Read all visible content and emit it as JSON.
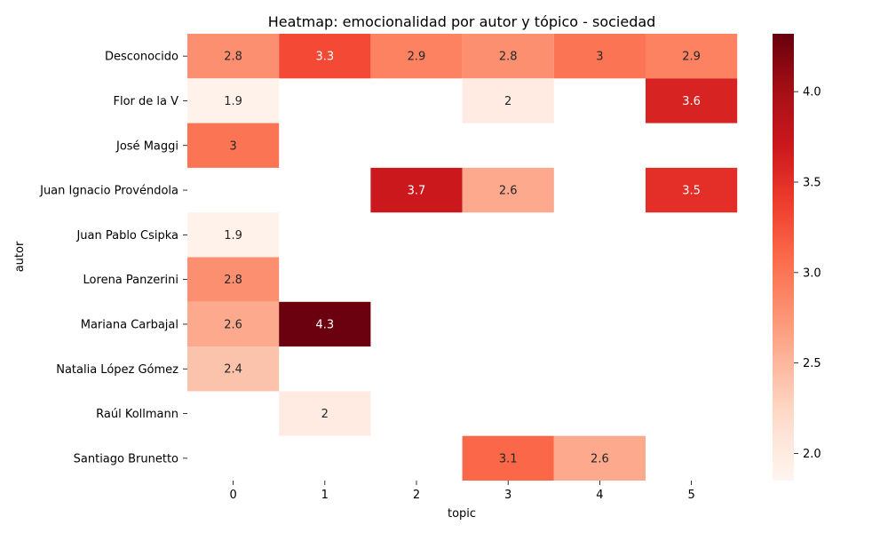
{
  "chart_data": {
    "type": "heatmap",
    "title": "Heatmap: emocionalidad por autor y tópico - sociedad",
    "xlabel": "topic",
    "ylabel": "autor",
    "x_categories": [
      "0",
      "1",
      "2",
      "3",
      "4",
      "5"
    ],
    "y_categories": [
      "Desconocido",
      "Flor de la V",
      "José Maggi",
      "Juan Ignacio Provéndola",
      "Juan Pablo Csipka",
      "Lorena Panzerini",
      "Mariana Carbajal",
      "Natalia López Gómez",
      "Raúl Kollmann",
      "Santiago Brunetto"
    ],
    "values": [
      [
        2.8,
        3.3,
        2.9,
        2.8,
        3,
        2.9
      ],
      [
        1.9,
        null,
        null,
        2,
        null,
        3.6
      ],
      [
        3,
        null,
        null,
        null,
        null,
        null
      ],
      [
        null,
        null,
        3.7,
        2.6,
        null,
        3.5
      ],
      [
        1.9,
        null,
        null,
        null,
        null,
        null
      ],
      [
        2.8,
        null,
        null,
        null,
        null,
        null
      ],
      [
        2.6,
        4.3,
        null,
        null,
        null,
        null
      ],
      [
        2.4,
        null,
        null,
        null,
        null,
        null
      ],
      [
        null,
        2,
        null,
        null,
        null,
        null
      ],
      [
        null,
        null,
        null,
        3.1,
        2.6,
        null
      ]
    ],
    "colorscale": "Reds",
    "colorbar": {
      "range": [
        1.85,
        4.32
      ],
      "ticks": [
        2.0,
        2.5,
        3.0,
        3.5,
        4.0
      ],
      "tick_labels": [
        "2.0",
        "2.5",
        "3.0",
        "3.5",
        "4.0"
      ]
    },
    "annotations_shown": true,
    "grid": false
  }
}
